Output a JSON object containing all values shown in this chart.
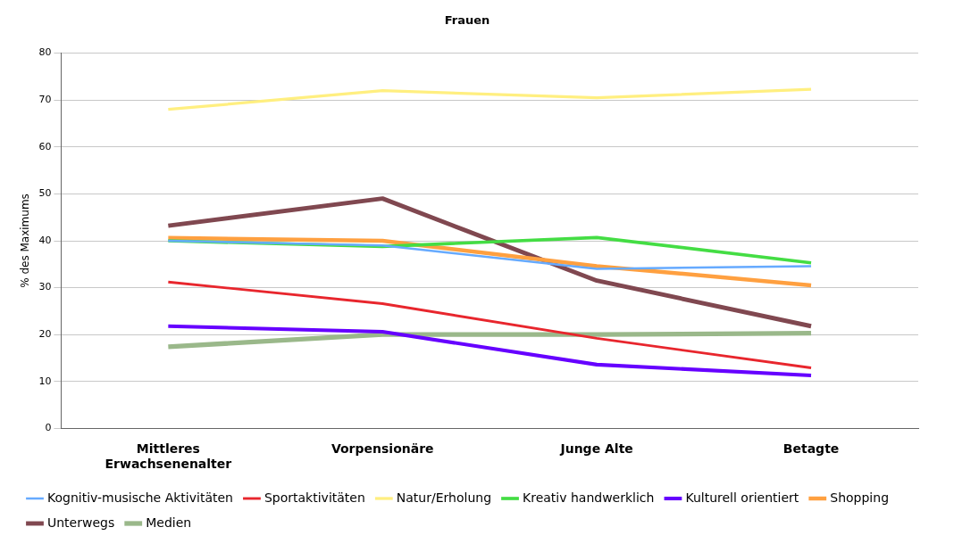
{
  "chart_data": {
    "type": "line",
    "title": "Frauen",
    "ylabel": "% des Maximums",
    "categories": [
      "Mittleres Erwachsenenalter",
      "Vorpensionäre",
      "Junge Alte",
      "Betagte"
    ],
    "ylim": [
      0,
      80
    ],
    "yticks": [
      0,
      10,
      20,
      30,
      40,
      50,
      60,
      70,
      80
    ],
    "grid": "y",
    "legend": "bottom",
    "marker": "none",
    "line_style": "solid",
    "series": [
      {
        "name": "Kognitiv-musische Aktivitäten",
        "color": "#66aaff",
        "values": [
          40,
          39,
          34,
          34.6
        ]
      },
      {
        "name": "Sportaktivitäten",
        "color": "#e8262d",
        "values": [
          31.2,
          26.6,
          19.2,
          12.9
        ]
      },
      {
        "name": "Natur/Erholung",
        "color": "#ffef80",
        "values": [
          68,
          72,
          70.5,
          72.3
        ]
      },
      {
        "name": "Kreativ handwerklich",
        "color": "#44dd44",
        "values": [
          40,
          38.8,
          40.7,
          35.3
        ]
      },
      {
        "name": "Kulturell orientiert",
        "color": "#6600ff",
        "values": [
          21.8,
          20.6,
          13.6,
          11.3
        ]
      },
      {
        "name": "Shopping",
        "color": "#ffa040",
        "values": [
          40.6,
          40,
          34.6,
          30.5
        ]
      },
      {
        "name": "Unterwegs",
        "color": "#804850",
        "values": [
          43.2,
          49,
          31.5,
          21.8
        ]
      },
      {
        "name": "Medien",
        "color": "#9ab88a",
        "values": [
          17.4,
          20,
          20,
          20.3
        ]
      }
    ]
  }
}
